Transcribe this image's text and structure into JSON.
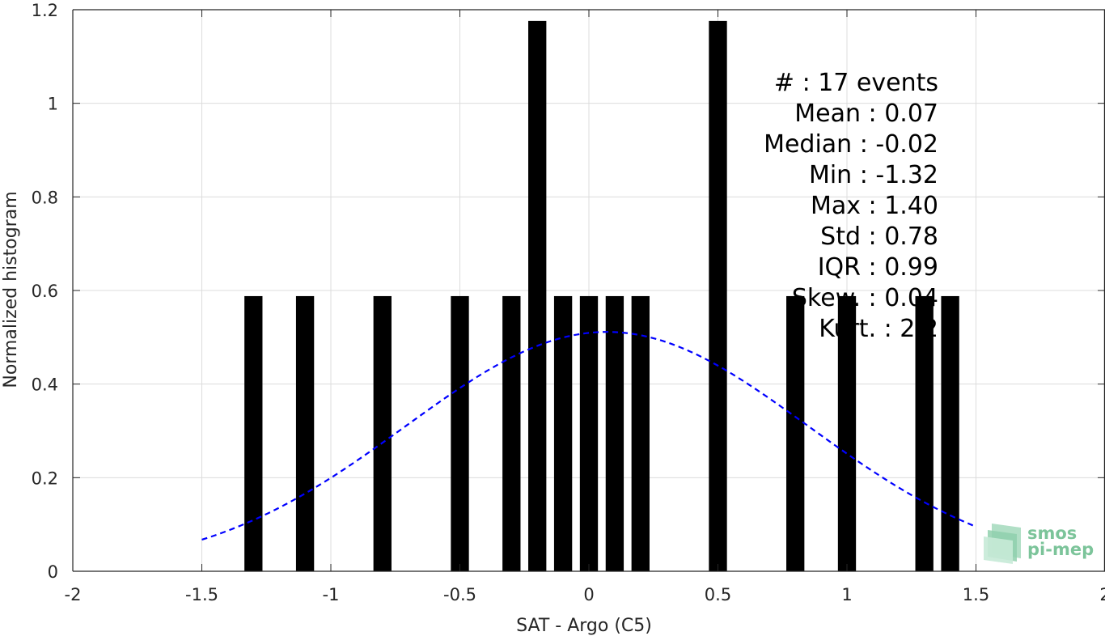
{
  "chart_data": {
    "type": "bar",
    "title": "",
    "xlabel": "SAT - Argo (C5)",
    "ylabel": "Normalized histogram",
    "xlim": [
      -2,
      2
    ],
    "ylim": [
      0,
      1.2
    ],
    "xticks": [
      -2,
      -1.5,
      -1,
      -0.5,
      0,
      0.5,
      1,
      1.5,
      2
    ],
    "xtick_labels": [
      "-2",
      "-1.5",
      "-1",
      "-0.5",
      "0",
      "0.5",
      "1",
      "1.5",
      "2"
    ],
    "yticks": [
      0,
      0.2,
      0.4,
      0.6,
      0.8,
      1,
      1.2
    ],
    "ytick_labels": [
      "0",
      "0.2",
      "0.4",
      "0.6",
      "0.8",
      "1",
      "1.2"
    ],
    "grid": true,
    "bin_width": 0.07,
    "bars": [
      {
        "x": -1.3,
        "y": 0.588
      },
      {
        "x": -1.1,
        "y": 0.588
      },
      {
        "x": -0.8,
        "y": 0.588
      },
      {
        "x": -0.5,
        "y": 0.588
      },
      {
        "x": -0.3,
        "y": 0.588
      },
      {
        "x": -0.2,
        "y": 1.176
      },
      {
        "x": -0.1,
        "y": 0.588
      },
      {
        "x": 0.0,
        "y": 0.588
      },
      {
        "x": 0.1,
        "y": 0.588
      },
      {
        "x": 0.2,
        "y": 0.588
      },
      {
        "x": 0.5,
        "y": 1.176
      },
      {
        "x": 0.8,
        "y": 0.588
      },
      {
        "x": 1.0,
        "y": 0.588
      },
      {
        "x": 1.3,
        "y": 0.588
      },
      {
        "x": 1.4,
        "y": 0.588
      }
    ],
    "fit_curve": {
      "type": "gaussian",
      "mean": 0.07,
      "std": 0.78,
      "x_range": [
        -1.5,
        1.5
      ],
      "color": "#0000ff",
      "style": "dashed"
    },
    "bar_color": "#000000",
    "stats": [
      {
        "label": "#  ",
        "value": ": 17 events"
      },
      {
        "label": "Mean ",
        "value": ": 0.07"
      },
      {
        "label": "Median ",
        "value": ": -0.02"
      },
      {
        "label": "Min ",
        "value": ": -1.32"
      },
      {
        "label": "Max ",
        "value": ": 1.40"
      },
      {
        "label": "Std ",
        "value": ": 0.78"
      },
      {
        "label": "IQR ",
        "value": ": 0.99"
      },
      {
        "label": "Skew. ",
        "value": ": 0.04"
      },
      {
        "label": "Kurt. ",
        "value": ": 2.2"
      }
    ]
  },
  "logo": {
    "line1": "smos",
    "line2": "pi-mep",
    "color": "#7cc49a"
  }
}
